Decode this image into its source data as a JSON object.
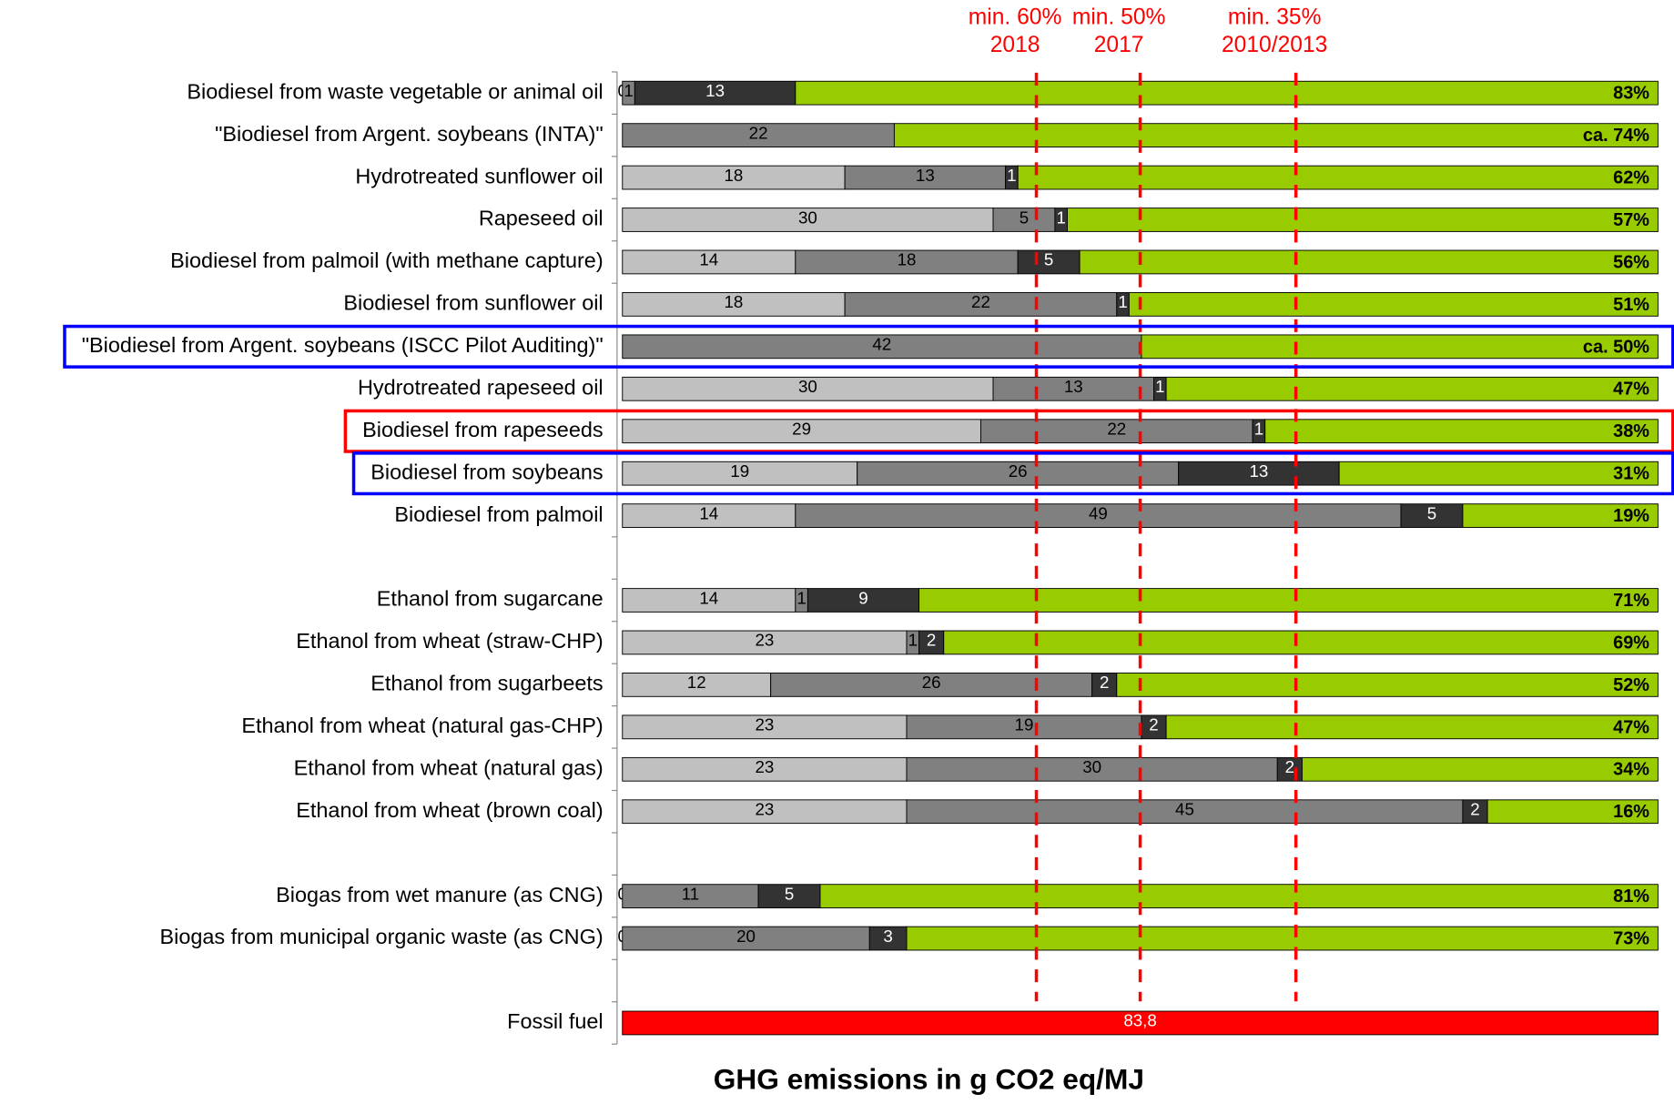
{
  "chart_data": {
    "type": "stacked_barh",
    "xlabel": "GHG emissions in g CO2 eq/MJ",
    "categories": [
      "Biodiesel from waste vegetable or animal oil",
      "\"Biodiesel from Argent. soybeans (INTA)\"",
      "Hydrotreated sunflower oil",
      "Rapeseed oil",
      "Biodiesel from palmoil (with methane capture)",
      "Biodiesel from sunflower oil",
      "\"Biodiesel from Argent. soybeans (ISCC Pilot Auditing)\"",
      "Hydrotreated rapeseed oil",
      "Biodiesel from rapeseeds",
      "Biodiesel from soybeans",
      "Biodiesel from palmoil",
      null,
      "Ethanol from sugarcane",
      "Ethanol from wheat (straw-CHP)",
      "Ethanol from sugarbeets",
      "Ethanol from wheat (natural gas-CHP)",
      "Ethanol from wheat (natural gas)",
      "Ethanol from wheat (brown coal)",
      null,
      "Biogas from wet manure (as CNG)",
      "Biogas from municipal organic waste (as CNG)",
      null,
      "Fossil fuel"
    ],
    "series": [
      {
        "color": "#c0c0c0",
        "text_color": "#000000",
        "values": [
          0,
          null,
          18,
          30,
          14,
          18,
          null,
          30,
          29,
          19,
          14,
          null,
          14,
          23,
          12,
          23,
          23,
          23,
          null,
          0,
          0,
          null,
          null
        ]
      },
      {
        "color": "#808080",
        "text_color": "#000000",
        "values": [
          1,
          22,
          13,
          5,
          18,
          22,
          42,
          13,
          22,
          26,
          49,
          null,
          1,
          1,
          26,
          19,
          30,
          45,
          null,
          11,
          20,
          null,
          null
        ]
      },
      {
        "color": "#333333",
        "text_color": "#ffffff",
        "values": [
          13,
          null,
          1,
          1,
          5,
          1,
          null,
          1,
          1,
          13,
          5,
          null,
          9,
          2,
          2,
          2,
          2,
          2,
          null,
          5,
          3,
          null,
          null
        ]
      },
      {
        "color": "#ff0000",
        "text_color": "#ffffff",
        "values": [
          null,
          null,
          null,
          null,
          null,
          null,
          null,
          null,
          null,
          null,
          null,
          null,
          null,
          null,
          null,
          null,
          null,
          null,
          null,
          null,
          null,
          null,
          83.8
        ],
        "value_labels": [
          null,
          null,
          null,
          null,
          null,
          null,
          null,
          null,
          null,
          null,
          null,
          null,
          null,
          null,
          null,
          null,
          null,
          null,
          null,
          null,
          null,
          null,
          "83,8"
        ]
      }
    ],
    "savings": {
      "color": "#99cc00",
      "values": [
        83,
        74,
        62,
        57,
        56,
        51,
        50,
        47,
        38,
        31,
        19,
        null,
        71,
        69,
        52,
        47,
        34,
        16,
        null,
        81,
        73,
        null,
        null
      ],
      "value_labels": [
        "83%",
        "ca. 74%",
        "62%",
        "57%",
        "56%",
        "51%",
        "ca. 50%",
        "47%",
        "38%",
        "31%",
        "19%",
        null,
        "71%",
        "69%",
        "52%",
        "47%",
        "34%",
        "16%",
        null,
        "81%",
        "73%",
        null,
        null
      ]
    },
    "xlim": [
      0,
      83.8
    ],
    "annotations": [
      {
        "x": 33.5,
        "label": "min. 60%",
        "sublabel": "2018",
        "color": "#ff0000"
      },
      {
        "x": 41.9,
        "label": "min. 50%",
        "sublabel": "2017",
        "color": "#ff0000"
      },
      {
        "x": 54.5,
        "label": "min. 35%",
        "sublabel": "2010/2013",
        "color": "#ff0000"
      }
    ],
    "highlights": [
      {
        "row": 6,
        "color": "#0000ff"
      },
      {
        "row": 8,
        "color": "#ff0000"
      },
      {
        "row": 9,
        "color": "#0000ff"
      }
    ]
  }
}
